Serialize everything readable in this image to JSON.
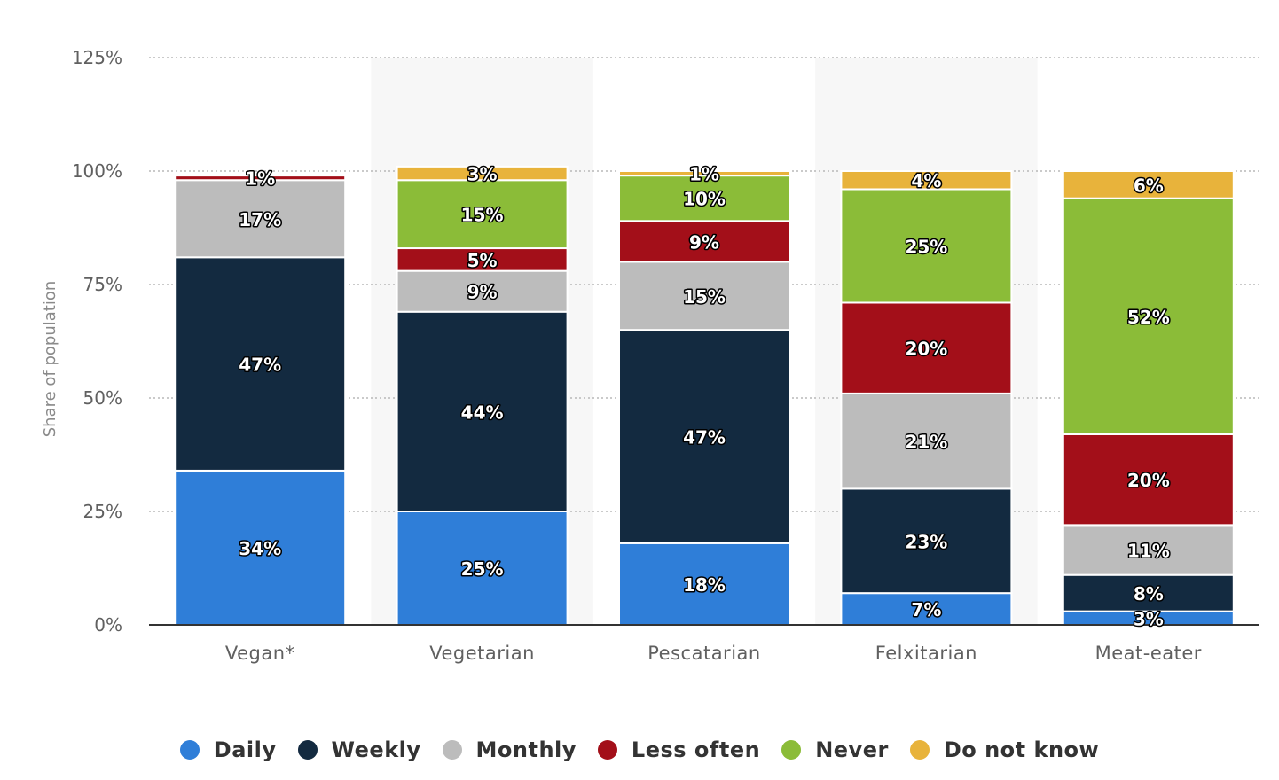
{
  "chart_data": {
    "type": "bar",
    "stacked": true,
    "categories": [
      "Vegan*",
      "Vegetarian",
      "Pescatarian",
      "Felxitarian",
      "Meat-eater"
    ],
    "ylabel": "Share of population",
    "ylim": [
      0,
      125
    ],
    "yticks": [
      "0%",
      "25%",
      "50%",
      "75%",
      "100%",
      "125%"
    ],
    "ytick_values": [
      0,
      25,
      50,
      75,
      100,
      125
    ],
    "grid": true,
    "legend_position": "bottom",
    "series": [
      {
        "name": "Daily",
        "color": "#2f7ed8",
        "values": [
          34,
          25,
          18,
          7,
          3
        ]
      },
      {
        "name": "Weekly",
        "color": "#132a40",
        "values": [
          47,
          44,
          47,
          23,
          8
        ]
      },
      {
        "name": "Monthly",
        "color": "#bcbcbc",
        "values": [
          17,
          9,
          15,
          21,
          11
        ]
      },
      {
        "name": "Less often",
        "color": "#a30f19",
        "values": [
          1,
          5,
          9,
          20,
          20
        ]
      },
      {
        "name": "Never",
        "color": "#8bbc38",
        "values": [
          0,
          15,
          10,
          25,
          52
        ]
      },
      {
        "name": "Do not know",
        "color": "#e8b33b",
        "values": [
          0,
          3,
          1,
          4,
          6
        ]
      }
    ],
    "data_labels": [
      [
        "34%",
        "25%",
        "18%",
        "7%",
        "3%"
      ],
      [
        "47%",
        "44%",
        "47%",
        "23%",
        "8%"
      ],
      [
        "17%",
        "9%",
        "15%",
        "21%",
        "11%"
      ],
      [
        "1%",
        "5%",
        "9%",
        "20%",
        "20%"
      ],
      [
        "",
        "15%",
        "10%",
        "25%",
        "52%"
      ],
      [
        "",
        "3%",
        "1%",
        "4%",
        "6%"
      ]
    ]
  }
}
